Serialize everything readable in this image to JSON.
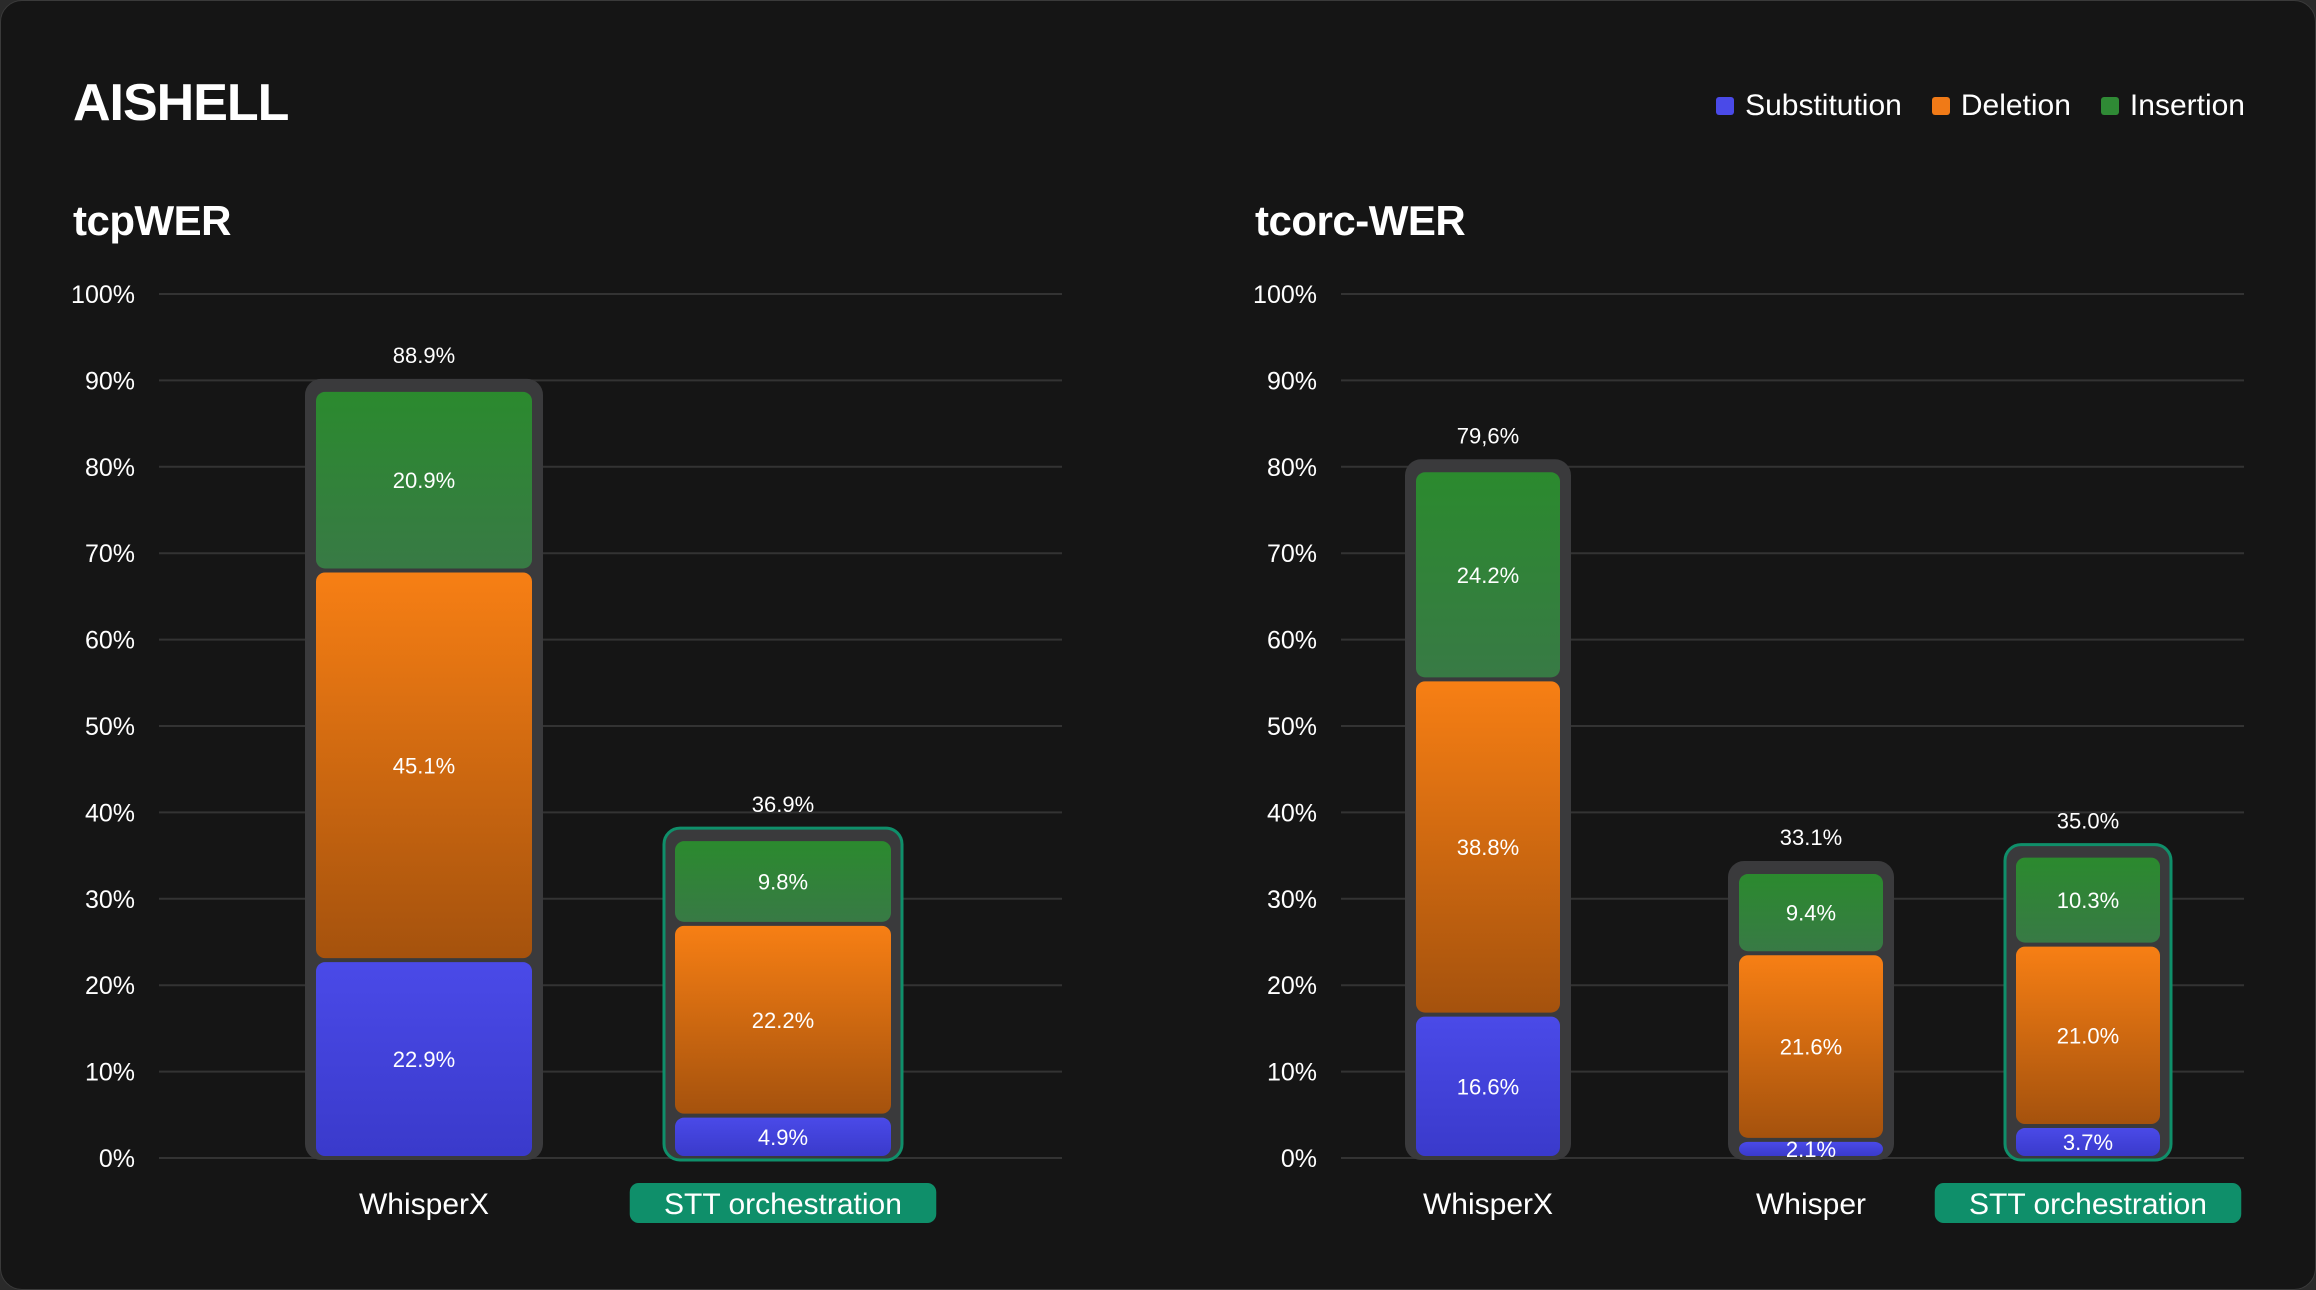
{
  "title": "AISHELL",
  "legend": [
    {
      "name": "Substitution",
      "color": "#4a4ae8"
    },
    {
      "name": "Deletion",
      "color": "#f07a17"
    },
    {
      "name": "Insertion",
      "color": "#2f8a35"
    }
  ],
  "colors": {
    "substitution_top": "#4a4ae8",
    "substitution_bottom": "#3a3acb",
    "deletion_top": "#f77f14",
    "deletion_bottom": "#a5520d",
    "insertion_top": "#2b8a2e",
    "insertion_bottom": "#387a45",
    "track": "#3a3a3c",
    "highlight": "#0f8f6a",
    "grid": "#333333"
  },
  "chart_data": [
    {
      "type": "bar",
      "stacked": true,
      "title": "tcpWER",
      "ylim": [
        0,
        100
      ],
      "yticks": [
        "0%",
        "10%",
        "20%",
        "30%",
        "40%",
        "50%",
        "60%",
        "70%",
        "80%",
        "90%",
        "100%"
      ],
      "categories": [
        "WhisperX",
        "STT orchestration"
      ],
      "highlighted": [
        "STT orchestration"
      ],
      "totals": [
        88.9,
        36.9
      ],
      "total_labels": [
        "88.9%",
        "36.9%"
      ],
      "series": [
        {
          "name": "Substitution",
          "values": [
            22.9,
            4.9
          ],
          "labels": [
            "22.9%",
            "4.9%"
          ]
        },
        {
          "name": "Deletion",
          "values": [
            45.1,
            22.2
          ],
          "labels": [
            "45.1%",
            "22.2%"
          ]
        },
        {
          "name": "Insertion",
          "values": [
            20.9,
            9.8
          ],
          "labels": [
            "20.9%",
            "9.8%"
          ]
        }
      ]
    },
    {
      "type": "bar",
      "stacked": true,
      "title": "tcorc-WER",
      "ylim": [
        0,
        100
      ],
      "yticks": [
        "0%",
        "10%",
        "20%",
        "30%",
        "40%",
        "50%",
        "60%",
        "70%",
        "80%",
        "90%",
        "100%"
      ],
      "categories": [
        "WhisperX",
        "Whisper",
        "STT orchestration"
      ],
      "highlighted": [
        "STT orchestration"
      ],
      "totals": [
        79.6,
        33.1,
        35.0
      ],
      "total_labels": [
        "79,6%",
        "33.1%",
        "35.0%"
      ],
      "series": [
        {
          "name": "Substitution",
          "values": [
            16.6,
            2.1,
            3.7
          ],
          "labels": [
            "16.6%",
            "2.1%",
            "3.7%"
          ]
        },
        {
          "name": "Deletion",
          "values": [
            38.8,
            21.6,
            21.0
          ],
          "labels": [
            "38.8%",
            "21.6%",
            "21.0%"
          ]
        },
        {
          "name": "Insertion",
          "values": [
            24.2,
            9.4,
            10.3
          ],
          "labels": [
            "24.2%",
            "9.4%",
            "10.3%"
          ]
        }
      ]
    }
  ]
}
